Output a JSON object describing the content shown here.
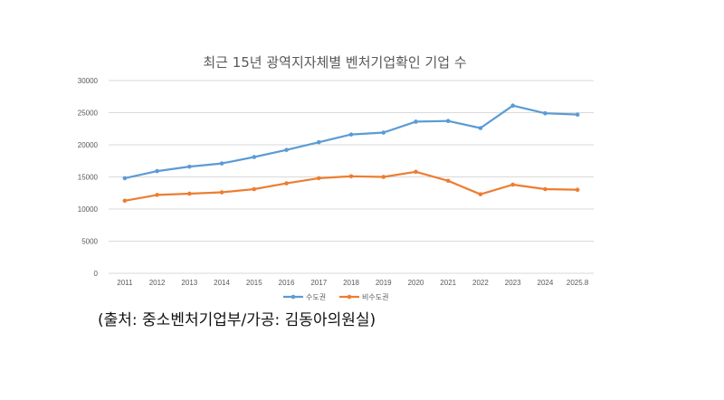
{
  "chart_data": {
    "type": "line",
    "title": "최근 15년 광역지자체별 벤처기업확인 기업 수",
    "categories": [
      "2011",
      "2012",
      "2013",
      "2014",
      "2015",
      "2016",
      "2017",
      "2018",
      "2019",
      "2020",
      "2021",
      "2022",
      "2023",
      "2024",
      "2025.8"
    ],
    "y_ticks": [
      "0",
      "5000",
      "10000",
      "15000",
      "20000",
      "25000",
      "30000"
    ],
    "ylim": [
      0,
      30000
    ],
    "grid": true,
    "legend_position": "bottom",
    "series": [
      {
        "name": "수도권",
        "color": "#5b9bd5",
        "values": [
          14800,
          15900,
          16600,
          17100,
          18100,
          19200,
          20400,
          21600,
          21900,
          23600,
          23700,
          22600,
          26100,
          24900,
          24700
        ]
      },
      {
        "name": "비수도권",
        "color": "#ed7d31",
        "values": [
          11300,
          12200,
          12400,
          12600,
          13100,
          14000,
          14800,
          15100,
          15000,
          15800,
          14400,
          12300,
          13800,
          13100,
          13000
        ]
      }
    ]
  },
  "caption": "(출처: 중소벤처기업부/가공: 김동아의원실)"
}
